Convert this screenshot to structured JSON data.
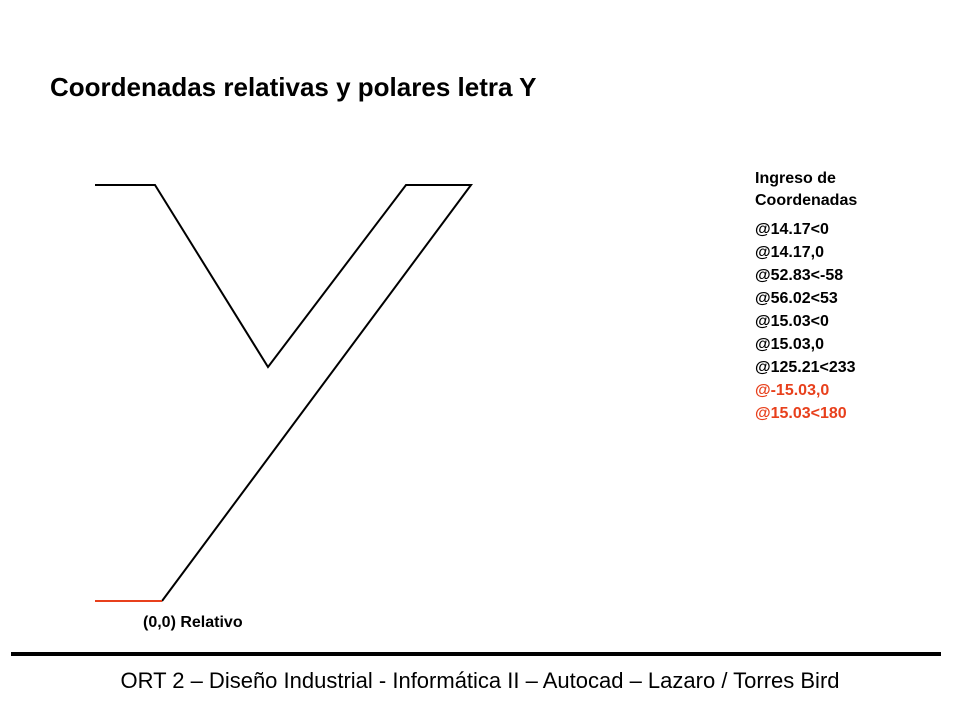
{
  "title": "Coordenadas relativas y polares letra Y",
  "coordinates_panel": {
    "heading_line1": "Ingreso de",
    "heading_line2": "Coordenadas",
    "entries": [
      {
        "text": "@14.17<0",
        "highlight": false
      },
      {
        "text": "@14.17,0",
        "highlight": false
      },
      {
        "text": "@52.83<-58",
        "highlight": false
      },
      {
        "text": "@56.02<53",
        "highlight": false
      },
      {
        "text": "@15.03<0",
        "highlight": false
      },
      {
        "text": "@15.03,0",
        "highlight": false
      },
      {
        "text": "@125.21<233",
        "highlight": false
      },
      {
        "text": "@-15.03,0",
        "highlight": true
      },
      {
        "text": "@15.03<180",
        "highlight": true
      }
    ]
  },
  "origin_label": "(0,0) Relativo",
  "footer": "ORT 2 – Diseño Industrial - Informática II – Autocad – Lazaro / Torres Bird",
  "colors": {
    "line": "#000000",
    "highlight": "#e8401c"
  }
}
